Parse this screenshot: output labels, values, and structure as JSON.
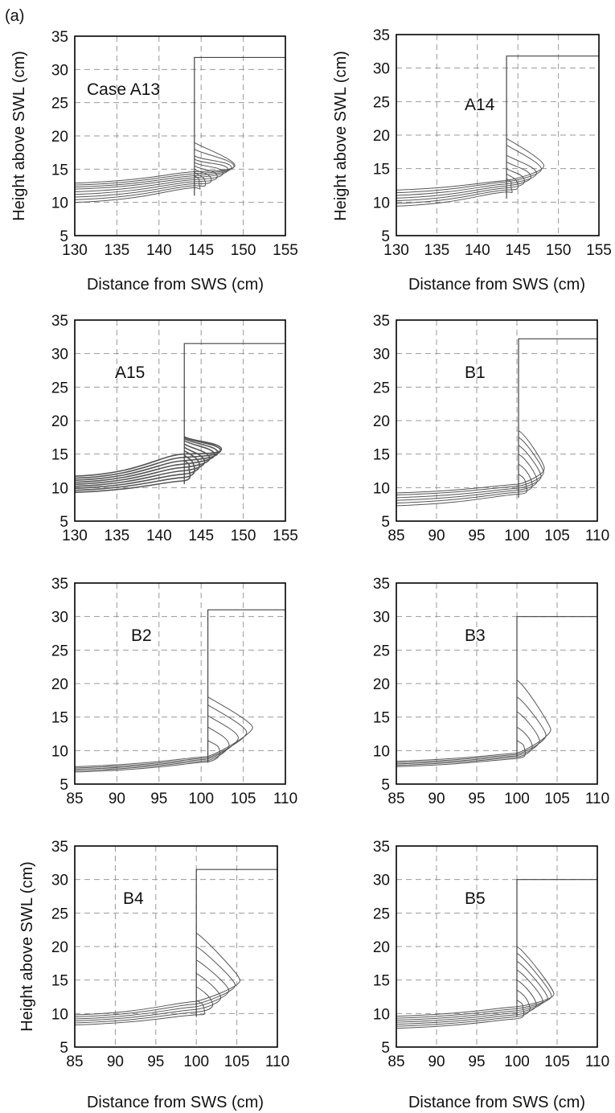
{
  "figure_label": "(a)",
  "chart_data": [
    {
      "type": "line",
      "case_label": "Case A13",
      "xlabel": "Distance from SWS (cm)",
      "ylabel": "Height above SWL (cm)",
      "xlim": [
        130,
        155
      ],
      "ylim": [
        5,
        35
      ],
      "xticks": [
        "130",
        "135",
        "140",
        "145",
        "150",
        "155"
      ],
      "yticks": [
        "5",
        "10",
        "15",
        "20",
        "25",
        "30",
        "35"
      ],
      "grid": true,
      "wall": {
        "x_toe": 144.2,
        "y_toe": 11.0,
        "y_crest": 31.8,
        "x_end": 155
      },
      "profiles": {
        "x_start": 130,
        "y_start": [
          10.0,
          10.4,
          10.8,
          11.2,
          11.6,
          12.0,
          12.3,
          12.6,
          12.9
        ],
        "y_near": [
          12.2,
          12.5,
          12.8,
          13.1,
          13.4,
          13.7,
          14.0,
          14.3,
          14.6
        ],
        "nose_x": [
          144.8,
          145.5,
          146.2,
          146.9,
          147.6,
          148.2,
          148.6,
          148.9,
          149.0
        ],
        "nose_y": [
          12.5,
          13.0,
          13.5,
          14.0,
          14.5,
          15.0,
          15.3,
          15.5,
          15.6
        ],
        "jet_y": [
          14.0,
          14.5,
          15.0,
          15.5,
          16.0,
          16.5,
          17.0,
          18.0,
          19.0
        ]
      }
    },
    {
      "type": "line",
      "case_label": "A14",
      "xlabel": "Distance from SWS (cm)",
      "ylabel": "Height above SWL (cm)",
      "xlim": [
        130,
        155
      ],
      "ylim": [
        5,
        35
      ],
      "xticks": [
        "130",
        "135",
        "140",
        "145",
        "150",
        "155"
      ],
      "yticks": [
        "5",
        "10",
        "15",
        "20",
        "25",
        "30",
        "35"
      ],
      "grid": true,
      "wall": {
        "x_toe": 143.6,
        "y_toe": 10.5,
        "y_crest": 31.8,
        "x_end": 155
      },
      "profiles": {
        "x_start": 130,
        "y_start": [
          9.4,
          9.8,
          10.2,
          10.6,
          11.0,
          11.4,
          11.8
        ],
        "y_near": [
          11.5,
          11.8,
          12.1,
          12.4,
          12.7,
          13.0,
          13.2
        ],
        "nose_x": [
          144.2,
          145.0,
          145.8,
          146.6,
          147.3,
          147.9,
          148.2
        ],
        "nose_y": [
          12.0,
          12.6,
          13.3,
          13.9,
          14.4,
          15.0,
          15.5
        ],
        "jet_y": [
          13.5,
          14.2,
          15.0,
          16.0,
          17.0,
          18.5,
          19.5
        ]
      }
    },
    {
      "type": "line",
      "case_label": "A15",
      "xlabel": "",
      "ylabel": "",
      "xlim": [
        130,
        155
      ],
      "ylim": [
        5,
        35
      ],
      "xticks": [
        "130",
        "135",
        "140",
        "145",
        "150",
        "155"
      ],
      "yticks": [
        "5",
        "10",
        "15",
        "20",
        "25",
        "30",
        "35"
      ],
      "grid": true,
      "wall": {
        "x_toe": 143.0,
        "y_toe": 10.5,
        "y_crest": 31.5,
        "x_end": 155
      },
      "profiles": {
        "x_start": 130,
        "y_start": [
          9.3,
          9.6,
          9.9,
          10.2,
          10.5,
          10.8,
          11.1,
          11.4,
          11.7
        ],
        "y_near": [
          11.0,
          11.5,
          12.0,
          12.5,
          13.0,
          13.5,
          14.0,
          14.5,
          15.0
        ],
        "nose_x": [
          143.6,
          144.2,
          144.8,
          145.4,
          146.0,
          146.6,
          147.0,
          147.3,
          147.4
        ],
        "nose_y": [
          12.5,
          13.0,
          13.5,
          14.0,
          14.5,
          15.0,
          15.3,
          15.6,
          15.8
        ],
        "jet_y": [
          14.0,
          14.8,
          15.5,
          16.0,
          16.5,
          17.0,
          17.3,
          17.5,
          17.6
        ]
      }
    },
    {
      "type": "line",
      "case_label": "B1",
      "xlabel": "",
      "ylabel": "",
      "xlim": [
        85,
        110
      ],
      "ylim": [
        5,
        35
      ],
      "xticks": [
        "85",
        "90",
        "95",
        "100",
        "105",
        "110"
      ],
      "yticks": [
        "5",
        "10",
        "15",
        "20",
        "25",
        "30",
        "35"
      ],
      "grid": true,
      "wall": {
        "x_toe": 100.2,
        "y_toe": 8.5,
        "y_crest": 32.2,
        "x_end": 110
      },
      "profiles": {
        "x_start": 85,
        "y_start": [
          7.3,
          7.7,
          8.1,
          8.5,
          8.9,
          9.2
        ],
        "y_near": [
          9.0,
          9.3,
          9.6,
          9.9,
          10.2,
          10.5
        ],
        "nose_x": [
          101.2,
          101.9,
          102.5,
          103.0,
          103.3,
          103.4
        ],
        "nose_y": [
          10.0,
          10.6,
          11.2,
          11.8,
          12.4,
          13.0
        ],
        "jet_y": [
          12.0,
          13.5,
          15.0,
          16.3,
          17.5,
          18.5
        ]
      }
    },
    {
      "type": "line",
      "case_label": "B2",
      "xlabel": "",
      "ylabel": "",
      "xlim": [
        85,
        110
      ],
      "ylim": [
        5,
        35
      ],
      "xticks": [
        "85",
        "90",
        "95",
        "100",
        "105",
        "110"
      ],
      "yticks": [
        "5",
        "10",
        "15",
        "20",
        "25",
        "30",
        "35"
      ],
      "grid": true,
      "wall": {
        "x_toe": 100.8,
        "y_toe": 8.2,
        "y_crest": 31.0,
        "x_end": 110
      },
      "profiles": {
        "x_start": 85,
        "y_start": [
          6.8,
          7.0,
          7.2,
          7.4,
          7.6
        ],
        "y_near": [
          8.3,
          8.5,
          8.7,
          8.9,
          9.1
        ],
        "nose_x": [
          102.2,
          103.3,
          104.4,
          105.4,
          106.1
        ],
        "nose_y": [
          10.0,
          11.0,
          12.0,
          12.8,
          13.5
        ],
        "jet_y": [
          11.5,
          13.5,
          15.2,
          16.8,
          18.0
        ]
      }
    },
    {
      "type": "line",
      "case_label": "B3",
      "xlabel": "",
      "ylabel": "",
      "xlim": [
        85,
        110
      ],
      "ylim": [
        5,
        35
      ],
      "xticks": [
        "85",
        "90",
        "95",
        "100",
        "105",
        "110"
      ],
      "yticks": [
        "5",
        "10",
        "15",
        "20",
        "25",
        "30",
        "35"
      ],
      "grid": true,
      "wall": {
        "x_toe": 100.0,
        "y_toe": 9.0,
        "y_crest": 30.0,
        "x_end": 110
      },
      "profiles": {
        "x_start": 85,
        "y_start": [
          7.6,
          7.8,
          8.0,
          8.2,
          8.4
        ],
        "y_near": [
          8.8,
          9.0,
          9.2,
          9.4,
          9.6
        ],
        "nose_x": [
          101.0,
          101.9,
          102.8,
          103.6,
          104.2
        ],
        "nose_y": [
          10.0,
          10.8,
          11.6,
          12.4,
          13.2
        ],
        "jet_y": [
          11.5,
          13.5,
          15.8,
          18.0,
          20.5
        ]
      }
    },
    {
      "type": "line",
      "case_label": "B4",
      "xlabel": "Distance from SWS (cm)",
      "ylabel": "Height above SWL (cm)",
      "xlim": [
        85,
        110
      ],
      "ylim": [
        5,
        35
      ],
      "xticks": [
        "85",
        "90",
        "95",
        "100",
        "105",
        "110"
      ],
      "yticks": [
        "5",
        "10",
        "15",
        "20",
        "25",
        "30",
        "35"
      ],
      "grid": true,
      "wall": {
        "x_toe": 100.0,
        "y_toe": 9.5,
        "y_crest": 31.5,
        "x_end": 110
      },
      "profiles": {
        "x_start": 85,
        "y_start": [
          8.3,
          8.6,
          8.9,
          9.2,
          9.5,
          9.8
        ],
        "y_near": [
          9.8,
          10.2,
          10.6,
          11.0,
          11.4,
          11.8
        ],
        "nose_x": [
          101.0,
          102.0,
          103.0,
          104.0,
          104.8,
          105.4
        ],
        "nose_y": [
          10.5,
          11.5,
          12.5,
          13.5,
          14.3,
          15.0
        ],
        "jet_y": [
          12.0,
          14.0,
          16.0,
          18.0,
          20.0,
          22.0
        ]
      }
    },
    {
      "type": "line",
      "case_label": "B5",
      "xlabel": "Distance from SWS (cm)",
      "ylabel": "",
      "xlim": [
        85,
        110
      ],
      "ylim": [
        5,
        35
      ],
      "xticks": [
        "85",
        "90",
        "95",
        "100",
        "105",
        "110"
      ],
      "yticks": [
        "5",
        "10",
        "15",
        "20",
        "25",
        "30",
        "35"
      ],
      "grid": true,
      "wall": {
        "x_toe": 100.0,
        "y_toe": 9.5,
        "y_crest": 30.0,
        "x_end": 110
      },
      "profiles": {
        "x_start": 85,
        "y_start": [
          7.8,
          8.1,
          8.4,
          8.7,
          9.0,
          9.3,
          9.6
        ],
        "y_near": [
          9.2,
          9.5,
          9.8,
          10.1,
          10.4,
          10.7,
          11.0
        ],
        "nose_x": [
          100.8,
          101.6,
          102.4,
          103.2,
          103.8,
          104.3,
          104.6
        ],
        "nose_y": [
          10.5,
          11.0,
          11.5,
          12.0,
          12.4,
          12.7,
          13.0
        ],
        "jet_y": [
          12.0,
          13.5,
          15.0,
          16.5,
          17.8,
          19.0,
          20.0
        ]
      }
    }
  ]
}
